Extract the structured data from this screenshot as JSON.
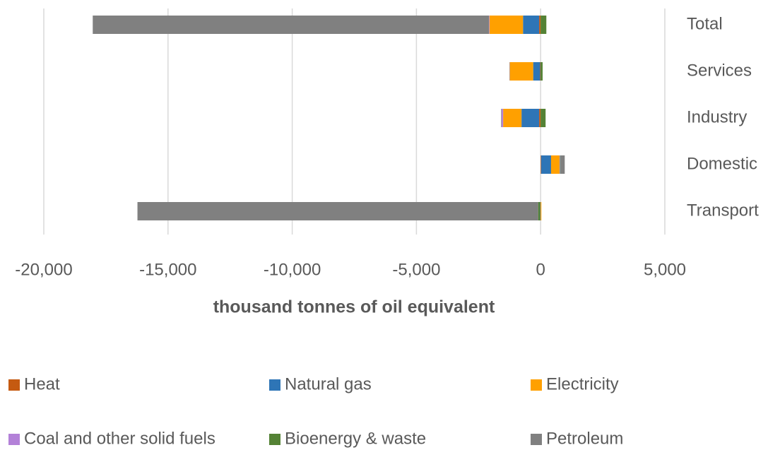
{
  "chart_data": {
    "type": "diverging_stacked_bar",
    "orientation": "horizontal",
    "x_label": "thousand tonnes of oil equivalent",
    "categories": [
      "Total",
      "Services",
      "Industry",
      "Domestic",
      "Transport"
    ],
    "series": [
      {
        "name": "Heat",
        "color": "#c55a11",
        "values": [
          -60,
          -20,
          -60,
          20,
          -10
        ]
      },
      {
        "name": "Natural gas",
        "color": "#2e75b6",
        "values": [
          -650,
          -280,
          -710,
          400,
          -10
        ]
      },
      {
        "name": "Electricity",
        "color": "#ffa000",
        "values": [
          -1350,
          -940,
          -740,
          340,
          30
        ]
      },
      {
        "name": "Coal and other solid fuels",
        "color": "#b381d8",
        "values": [
          -20,
          -10,
          -60,
          20,
          0
        ]
      },
      {
        "name": "Bioenergy & waste",
        "color": "#548235",
        "values": [
          230,
          80,
          200,
          20,
          -80
        ]
      },
      {
        "name": "Petroleum",
        "color": "#808080",
        "values": [
          -15950,
          -10,
          -20,
          170,
          -16130
        ]
      }
    ],
    "xlim": [
      -20000,
      5000
    ],
    "xticks": [
      {
        "value": -20000,
        "label": "-20,000"
      },
      {
        "value": -15000,
        "label": "-15,000"
      },
      {
        "value": -10000,
        "label": "-10,000"
      },
      {
        "value": -5000,
        "label": "-5,000"
      },
      0,
      {
        "value": 5000,
        "label": "5,000"
      }
    ],
    "grid": true,
    "legend": "bottom"
  }
}
